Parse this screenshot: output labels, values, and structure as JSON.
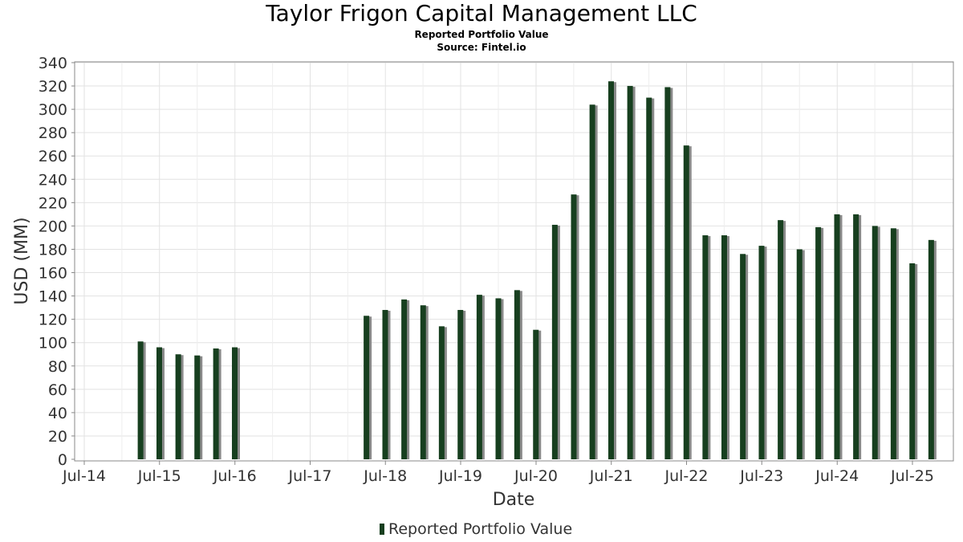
{
  "chart_data": {
    "type": "bar",
    "title": "Taylor Frigon Capital Management LLC",
    "subtitle": "Reported Portfolio Value",
    "source": "Source: Fintel.io",
    "xlabel": "Date",
    "ylabel": "USD (MM)",
    "ylim": [
      0,
      340
    ],
    "yticks": [
      0,
      20,
      40,
      60,
      80,
      100,
      120,
      140,
      160,
      180,
      200,
      220,
      240,
      260,
      280,
      300,
      320,
      340
    ],
    "xticks": [
      {
        "label": "Jul-14",
        "date": "2014-07-01"
      },
      {
        "label": "Jul-15",
        "date": "2015-07-01"
      },
      {
        "label": "Jul-16",
        "date": "2016-07-01"
      },
      {
        "label": "Jul-17",
        "date": "2017-07-01"
      },
      {
        "label": "Jul-18",
        "date": "2018-07-01"
      },
      {
        "label": "Jul-19",
        "date": "2019-07-01"
      },
      {
        "label": "Jul-20",
        "date": "2020-07-01"
      },
      {
        "label": "Jul-21",
        "date": "2021-07-01"
      },
      {
        "label": "Jul-22",
        "date": "2022-07-01"
      },
      {
        "label": "Jul-23",
        "date": "2023-07-01"
      },
      {
        "label": "Jul-24",
        "date": "2024-07-01"
      },
      {
        "label": "Jul-25",
        "date": "2025-07-01"
      }
    ],
    "grid": true,
    "legend_position": "bottom",
    "colors": {
      "bar": "#173f1f",
      "shadow": "#8a8a8a",
      "grid": "#e2e2e2",
      "axis": "#888888"
    },
    "series": [
      {
        "name": "Reported Portfolio Value",
        "points": [
          {
            "date": "2015-03-31",
            "value": 101
          },
          {
            "date": "2015-06-30",
            "value": 96
          },
          {
            "date": "2015-09-30",
            "value": 90
          },
          {
            "date": "2015-12-31",
            "value": 89
          },
          {
            "date": "2016-03-31",
            "value": 95
          },
          {
            "date": "2016-06-30",
            "value": 96
          },
          {
            "date": "2018-03-31",
            "value": 123
          },
          {
            "date": "2018-06-30",
            "value": 128
          },
          {
            "date": "2018-09-30",
            "value": 137
          },
          {
            "date": "2018-12-31",
            "value": 132
          },
          {
            "date": "2019-03-31",
            "value": 114
          },
          {
            "date": "2019-06-30",
            "value": 128
          },
          {
            "date": "2019-09-30",
            "value": 141
          },
          {
            "date": "2019-12-31",
            "value": 138
          },
          {
            "date": "2020-03-31",
            "value": 145
          },
          {
            "date": "2020-06-30",
            "value": 111
          },
          {
            "date": "2020-09-30",
            "value": 201
          },
          {
            "date": "2020-12-31",
            "value": 227
          },
          {
            "date": "2021-03-31",
            "value": 304
          },
          {
            "date": "2021-06-30",
            "value": 324
          },
          {
            "date": "2021-09-30",
            "value": 320
          },
          {
            "date": "2021-12-31",
            "value": 310
          },
          {
            "date": "2022-03-31",
            "value": 319
          },
          {
            "date": "2022-06-30",
            "value": 269
          },
          {
            "date": "2022-09-30",
            "value": 192
          },
          {
            "date": "2022-12-31",
            "value": 192
          },
          {
            "date": "2023-03-31",
            "value": 176
          },
          {
            "date": "2023-06-30",
            "value": 183
          },
          {
            "date": "2023-09-30",
            "value": 205
          },
          {
            "date": "2023-12-31",
            "value": 180
          },
          {
            "date": "2024-03-31",
            "value": 199
          },
          {
            "date": "2024-06-30",
            "value": 210
          },
          {
            "date": "2024-09-30",
            "value": 210
          },
          {
            "date": "2024-12-31",
            "value": 200
          },
          {
            "date": "2025-03-31",
            "value": 198
          },
          {
            "date": "2025-06-30",
            "value": 168
          },
          {
            "date": "2025-09-30",
            "value": 188
          }
        ]
      }
    ]
  }
}
